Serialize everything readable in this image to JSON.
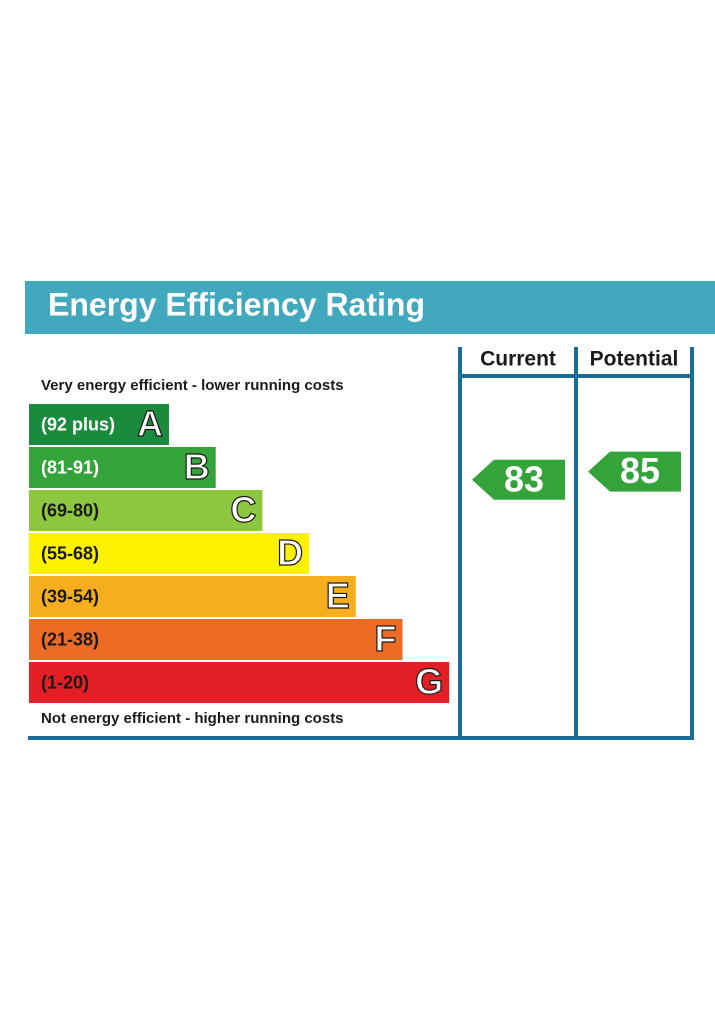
{
  "chart_data": {
    "type": "epc",
    "title": "Energy Efficiency Rating",
    "top_note": "Very energy efficient - lower running costs",
    "bottom_note": "Not energy efficient - higher running costs",
    "bands": [
      {
        "range": "(92 plus)",
        "letter": "A",
        "color": "#1a8a3c",
        "text_color": "#ffffff"
      },
      {
        "range": "(81-91)",
        "letter": "B",
        "color": "#34a33a",
        "text_color": "#ffffff"
      },
      {
        "range": "(69-80)",
        "letter": "C",
        "color": "#8dc63f",
        "text_color": "#1a1a1a"
      },
      {
        "range": "(55-68)",
        "letter": "D",
        "color": "#fff200",
        "text_color": "#1a1a1a"
      },
      {
        "range": "(39-54)",
        "letter": "E",
        "color": "#f6ae1f",
        "text_color": "#1a1a1a"
      },
      {
        "range": "(21-38)",
        "letter": "F",
        "color": "#ee6b26",
        "text_color": "#1a1a1a"
      },
      {
        "range": "(1-20)",
        "letter": "G",
        "color": "#e31e24",
        "text_color": "#1a1a1a"
      }
    ],
    "series": [
      {
        "name": "Current",
        "values": [
          83
        ]
      },
      {
        "name": "Potential",
        "values": [
          85
        ]
      }
    ]
  }
}
